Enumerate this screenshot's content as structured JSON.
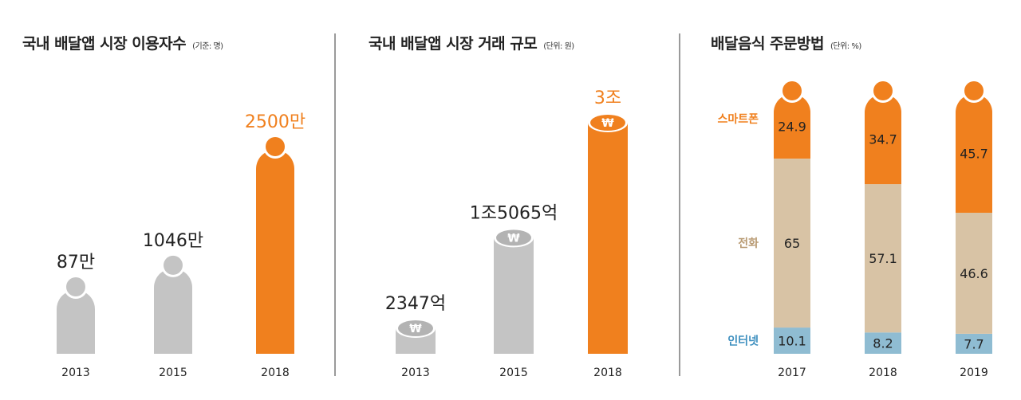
{
  "colors": {
    "orange": "#f0801e",
    "gray": "#c4c4c4",
    "beige": "#d8c3a5",
    "blue": "#8fbcd2",
    "text": "#222222",
    "coin_gray": "#b3b3b3"
  },
  "panels": [
    {
      "title": "국내 배달앱 시장 이용자수",
      "unit": "(기준: 명)"
    },
    {
      "title": "국내 배달앱 시장 거래 규모",
      "unit": "(단위: 원)"
    },
    {
      "title": "배달음식 주문방법",
      "unit": "(단위: %)"
    }
  ],
  "chart_data": [
    {
      "type": "bar",
      "title": "국내 배달앱 시장 이용자수",
      "unit": "(기준: 명)",
      "categories": [
        "2013",
        "2015",
        "2018"
      ],
      "values": [
        87,
        1046,
        2500
      ],
      "labels": [
        "87만",
        "1046만",
        "2500만"
      ],
      "highlight": [
        false,
        false,
        true
      ]
    },
    {
      "type": "bar",
      "title": "국내 배달앱 시장 거래 규모",
      "unit": "(단위: 원)",
      "categories": [
        "2013",
        "2015",
        "2018"
      ],
      "values": [
        2347,
        15065,
        30000
      ],
      "labels": [
        "2347억",
        "1조5065억",
        "3조"
      ],
      "coin_symbol": "₩",
      "highlight": [
        false,
        false,
        true
      ]
    },
    {
      "type": "bar",
      "stacked": true,
      "title": "배달음식 주문방법",
      "unit": "(단위: %)",
      "categories": [
        "2017",
        "2018",
        "2019"
      ],
      "series": [
        {
          "name": "인터넷",
          "values": [
            10.1,
            8.2,
            7.7
          ],
          "labels": [
            "10.1",
            "8.2",
            "7.7"
          ]
        },
        {
          "name": "전화",
          "values": [
            65,
            57.1,
            46.6
          ],
          "labels": [
            "65",
            "57.1",
            "46.6"
          ]
        },
        {
          "name": "스마트폰",
          "values": [
            24.9,
            34.7,
            45.7
          ],
          "labels": [
            "24.9",
            "34.7",
            "45.7"
          ]
        }
      ]
    }
  ]
}
